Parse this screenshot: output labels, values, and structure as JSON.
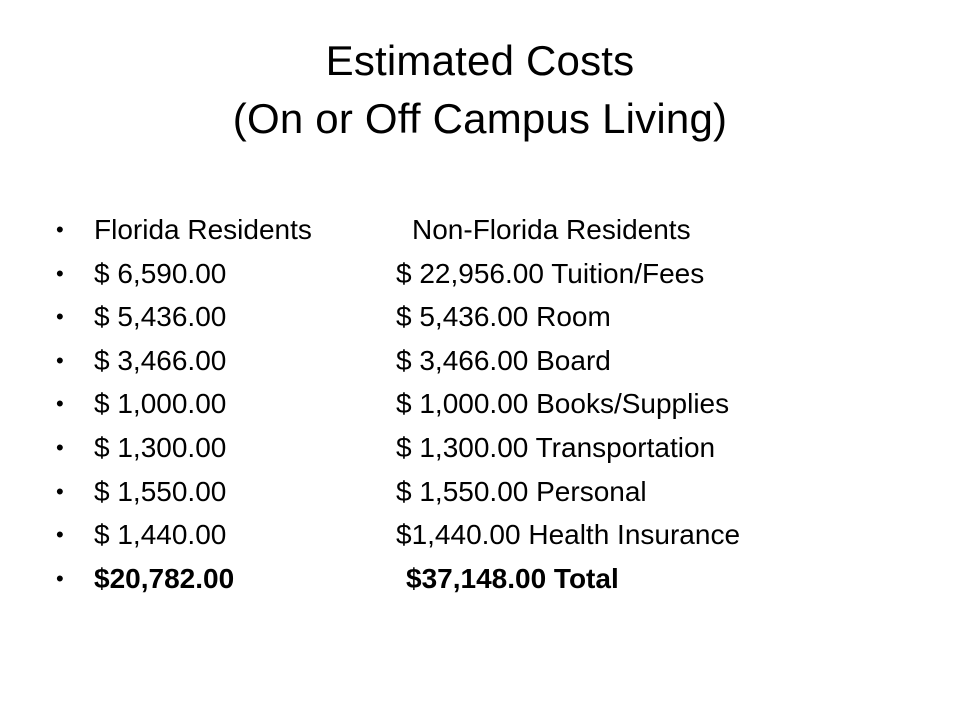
{
  "slide": {
    "title_line1": "Estimated Costs",
    "title_line2": "(On or Off Campus Living)",
    "bullet_glyph": "•",
    "rows": [
      {
        "col_a": "Florida Residents",
        "col_b": "Non-Florida Residents"
      },
      {
        "col_a": "$ 6,590.00",
        "col_b": "$ 22,956.00 Tuition/Fees"
      },
      {
        "col_a": "$ 5,436.00",
        "col_b": "$ 5,436.00 Room"
      },
      {
        "col_a": "$ 3,466.00",
        "col_b": "$ 3,466.00 Board"
      },
      {
        "col_a": "$ 1,000.00",
        "col_b": "$ 1,000.00 Books/Supplies"
      },
      {
        "col_a": "$ 1,300.00",
        "col_b": "$ 1,300.00 Transportation"
      },
      {
        "col_a": "$ 1,550.00",
        "col_b": "$ 1,550.00 Personal"
      },
      {
        "col_a": "$ 1,440.00",
        "col_b": "$1,440.00 Health Insurance"
      },
      {
        "col_a": "$20,782.00",
        "col_b": "$37,148.00  Total"
      }
    ]
  }
}
